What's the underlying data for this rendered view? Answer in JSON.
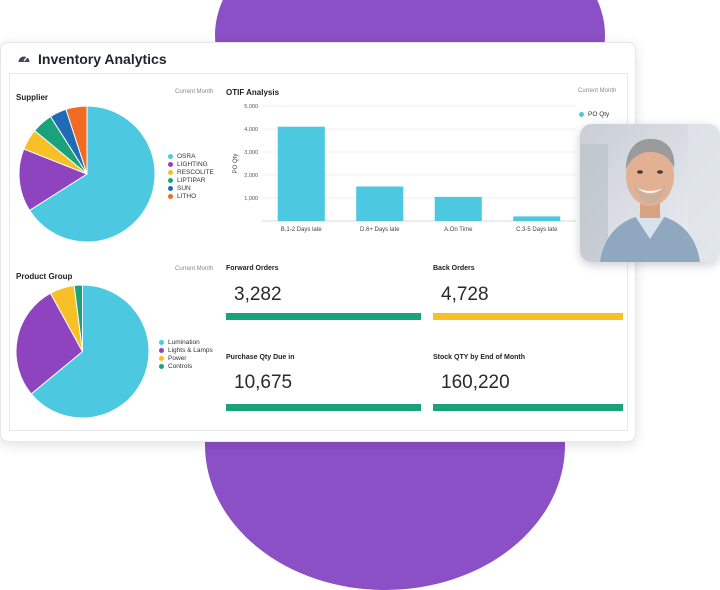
{
  "app": {
    "title": "Inventory Analytics",
    "icon": "gauge-icon"
  },
  "colors": {
    "accent_purple": "#8b4fc6",
    "teal": "#4cc9e0",
    "green": "#1aa37a",
    "yellow": "#f6c026"
  },
  "supplier": {
    "title": "Supplier",
    "period": "Current Month",
    "chart_data": {
      "type": "pie",
      "labels": [
        "OSRA",
        "LIGHTING",
        "RESCOLITE",
        "LIPTIPAR",
        "SUN",
        "LITHO"
      ],
      "values": [
        66,
        15,
        5,
        5,
        4,
        5
      ],
      "colors": [
        "#4cc9e0",
        "#8e44bf",
        "#f6c026",
        "#1aa37a",
        "#1f6bb5",
        "#f26b22"
      ]
    }
  },
  "otif": {
    "title": "OTIF Analysis",
    "period": "Current Month",
    "chart_data": {
      "type": "bar",
      "categories": [
        "B.1-2 Days late",
        "D.6+ Days late",
        "A.On Time",
        "C.3-5 Days late"
      ],
      "series": [
        {
          "name": "PO Qty",
          "values": [
            4100,
            1500,
            1050,
            200
          ]
        }
      ],
      "ylabel": "PO Qty",
      "ylim": [
        0,
        5000
      ],
      "yticks": [
        "5,000",
        "4,000",
        "3,000",
        "2,000",
        "1,000"
      ],
      "ytick_values": [
        5000,
        4000,
        3000,
        2000,
        1000
      ],
      "color": "#4cc9e0",
      "legend": "top-right"
    }
  },
  "product_group": {
    "title": "Product Group",
    "period": "Current Month",
    "chart_data": {
      "type": "pie",
      "labels": [
        "Lumination",
        "Lights & Lamps",
        "Power",
        "Controls"
      ],
      "values": [
        64,
        28,
        6,
        2
      ],
      "colors": [
        "#4cc9e0",
        "#8e44bf",
        "#f6c026",
        "#1aa37a"
      ]
    }
  },
  "kpis": [
    {
      "label": "Forward Orders",
      "value": "3,282",
      "bar_color": "#1aa37a"
    },
    {
      "label": "Back Orders",
      "value": "4,728",
      "bar_color": "#f6c026"
    },
    {
      "label": "Purchase Qty Due in",
      "value": "10,675",
      "bar_color": "#1aa37a"
    },
    {
      "label": "Stock QTY by End of Month",
      "value": "160,220",
      "bar_color": "#1aa37a"
    }
  ]
}
